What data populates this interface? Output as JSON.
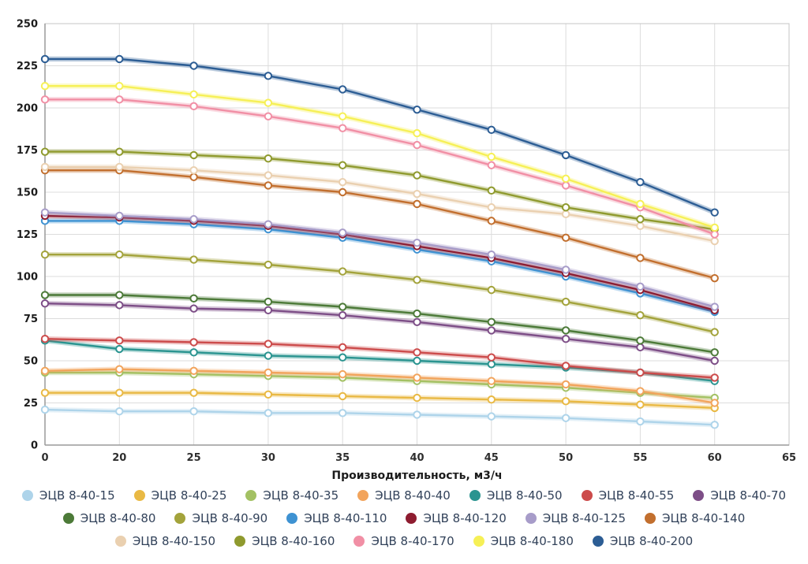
{
  "chart_data": {
    "type": "line",
    "title": "",
    "xlabel": "Производительность, м3/ч",
    "ylabel": "",
    "x_categories": [
      0,
      20,
      25,
      30,
      35,
      40,
      45,
      50,
      55,
      60
    ],
    "x_ticks": [
      0,
      20,
      25,
      30,
      35,
      40,
      45,
      50,
      55,
      60,
      65
    ],
    "ylim": [
      0,
      250
    ],
    "y_step": 25,
    "grid": true,
    "legend_position": "bottom",
    "marker": "circle-white-fill",
    "series": [
      {
        "name": "ЭЦВ 8-40-15",
        "color": "#aed4ea",
        "values": [
          21,
          20,
          20,
          19,
          19,
          18,
          17,
          16,
          14,
          12
        ]
      },
      {
        "name": "ЭЦВ 8-40-25",
        "color": "#e9b944",
        "values": [
          31,
          31,
          31,
          30,
          29,
          28,
          27,
          26,
          24,
          22
        ]
      },
      {
        "name": "ЭЦВ 8-40-35",
        "color": "#a3c163",
        "values": [
          43,
          43,
          42,
          41,
          40,
          38,
          36,
          34,
          31,
          28
        ]
      },
      {
        "name": "ЭЦВ 8-40-40",
        "color": "#f2a45c",
        "values": [
          44,
          45,
          44,
          43,
          42,
          40,
          38,
          36,
          32,
          25
        ]
      },
      {
        "name": "ЭЦВ 8-40-50",
        "color": "#2a9490",
        "values": [
          62,
          57,
          55,
          53,
          52,
          50,
          48,
          46,
          43,
          38
        ]
      },
      {
        "name": "ЭЦВ 8-40-55",
        "color": "#cc4b4b",
        "values": [
          63,
          62,
          61,
          60,
          58,
          55,
          52,
          47,
          43,
          40
        ]
      },
      {
        "name": "ЭЦВ 8-40-70",
        "color": "#7d4e87",
        "values": [
          84,
          83,
          81,
          80,
          77,
          73,
          68,
          63,
          58,
          50
        ]
      },
      {
        "name": "ЭЦВ 8-40-80",
        "color": "#4c7a38",
        "values": [
          89,
          89,
          87,
          85,
          82,
          78,
          73,
          68,
          62,
          55
        ]
      },
      {
        "name": "ЭЦВ 8-40-90",
        "color": "#a3a33b",
        "values": [
          113,
          113,
          110,
          107,
          103,
          98,
          92,
          85,
          77,
          67
        ]
      },
      {
        "name": "ЭЦВ 8-40-110",
        "color": "#3e92d2",
        "values": [
          133,
          133,
          131,
          128,
          123,
          116,
          109,
          100,
          90,
          79
        ]
      },
      {
        "name": "ЭЦВ 8-40-120",
        "color": "#8e1c30",
        "values": [
          136,
          135,
          133,
          130,
          125,
          118,
          111,
          102,
          92,
          80
        ]
      },
      {
        "name": "ЭЦВ 8-40-125",
        "color": "#a79cc9",
        "values": [
          138,
          136,
          134,
          131,
          126,
          120,
          113,
          104,
          94,
          82
        ]
      },
      {
        "name": "ЭЦВ 8-40-140",
        "color": "#c26f2e",
        "values": [
          163,
          163,
          159,
          154,
          150,
          143,
          133,
          123,
          111,
          99
        ]
      },
      {
        "name": "ЭЦВ 8-40-150",
        "color": "#ead0b0",
        "values": [
          165,
          165,
          163,
          160,
          156,
          149,
          141,
          137,
          130,
          121
        ]
      },
      {
        "name": "ЭЦВ 8-40-160",
        "color": "#8f9a2e",
        "values": [
          174,
          174,
          172,
          170,
          166,
          160,
          151,
          141,
          134,
          128
        ]
      },
      {
        "name": "ЭЦВ 8-40-170",
        "color": "#f18fa5",
        "values": [
          205,
          205,
          201,
          195,
          188,
          178,
          166,
          154,
          141,
          125
        ]
      },
      {
        "name": "ЭЦВ 8-40-180",
        "color": "#f6f056",
        "values": [
          213,
          213,
          208,
          203,
          195,
          185,
          171,
          158,
          143,
          129
        ]
      },
      {
        "name": "ЭЦВ 8-40-200",
        "color": "#2c5d94",
        "values": [
          229,
          229,
          225,
          219,
          211,
          199,
          187,
          172,
          156,
          138
        ]
      }
    ]
  }
}
